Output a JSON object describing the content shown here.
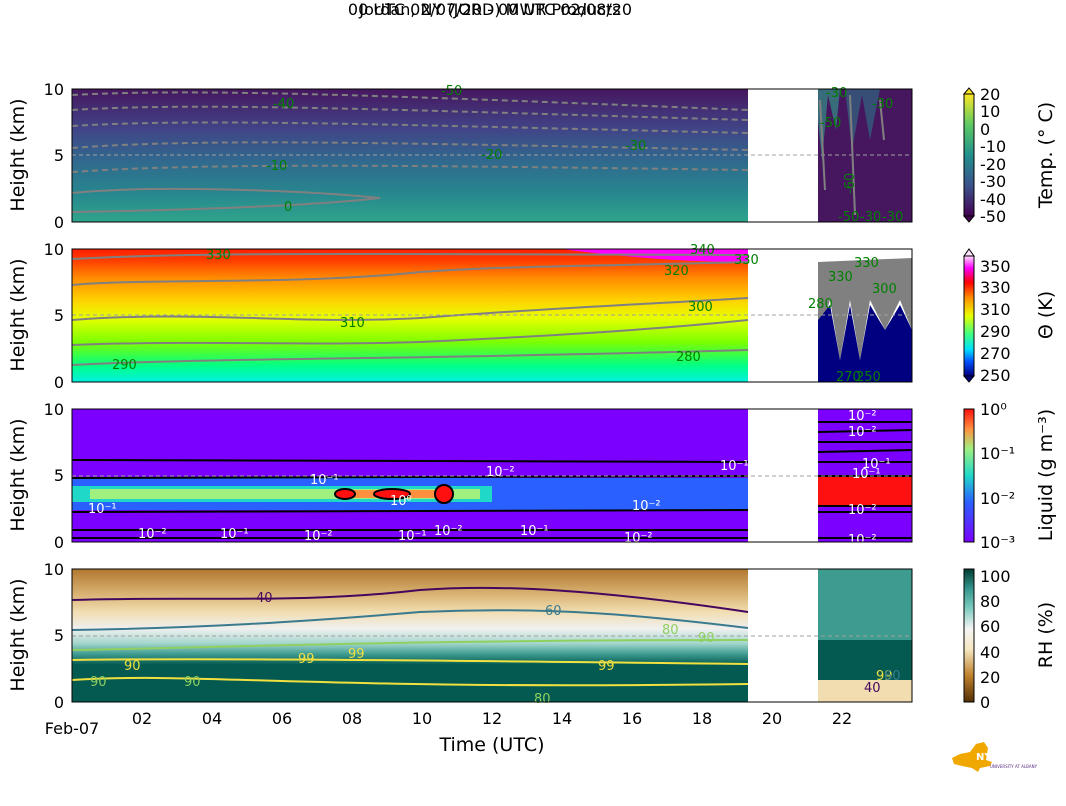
{
  "figure": {
    "title": "Jordan, NY (JORD) MWR Products",
    "subtitle": "00 UTC 02/07/20 - 00 UTC 02/08/20",
    "xlabel": "Time (UTC)",
    "x_ticks": [
      "Feb-07",
      "02",
      "04",
      "06",
      "08",
      "10",
      "12",
      "14",
      "16",
      "18",
      "20",
      "22"
    ],
    "logo": {
      "name": "NYS Mesonet",
      "sub": "UNIVERSITY AT ALBANY"
    }
  },
  "colors": {
    "purple": "#7b00ff",
    "missing": "#ffffff",
    "contour_gray": "#808080",
    "label_green": "#008000",
    "dashed_ref": "#a0a0a0"
  },
  "chart_data": [
    {
      "type": "heatmap",
      "panel": "temperature",
      "ylabel": "Height (km)",
      "y_ticks": [
        "0",
        "5",
        "10"
      ],
      "ylim": [
        0,
        10
      ],
      "x_range_hours": [
        0,
        24
      ],
      "data_gap_hours": [
        19.2,
        21.2
      ],
      "colorbar": {
        "label": "Temp. (° C)",
        "ticks": [
          "20",
          "10",
          "0",
          "-10",
          "-20",
          "-30",
          "-40",
          "-50"
        ],
        "range": [
          -50,
          20
        ]
      },
      "contour_labels": [
        "-40",
        "-50",
        "-10",
        "-20",
        "-30",
        "0",
        "-30",
        "-50",
        "-60",
        "-50",
        "-30",
        "-30",
        "-30"
      ]
    },
    {
      "type": "heatmap",
      "panel": "potential_temperature",
      "ylabel": "Height (km)",
      "y_ticks": [
        "0",
        "5",
        "10"
      ],
      "ylim": [
        0,
        10
      ],
      "colorbar": {
        "label": "Θ (K)",
        "ticks": [
          "350",
          "330",
          "310",
          "290",
          "270",
          "250"
        ],
        "range": [
          250,
          360
        ]
      },
      "contour_labels": [
        "330",
        "320",
        "330",
        "340",
        "310",
        "300",
        "290",
        "280",
        "280",
        "330",
        "330",
        "300",
        "270",
        "250"
      ]
    },
    {
      "type": "heatmap",
      "panel": "liquid",
      "ylabel": "Height (km)",
      "y_ticks": [
        "0",
        "5",
        "10"
      ],
      "ylim": [
        0,
        10
      ],
      "colorbar": {
        "label": "Liquid (g m⁻³)",
        "ticks": [
          "10⁰",
          "10⁻¹",
          "10⁻²",
          "10⁻³"
        ],
        "range": [
          0.001,
          1
        ],
        "scale": "log"
      },
      "contour_labels": [
        "10⁻¹",
        "10⁻²",
        "10⁻²",
        "10⁻¹",
        "10⁰",
        "10⁻¹",
        "10⁻¹",
        "10⁻²",
        "10⁻¹",
        "10⁻²",
        "10⁻¹",
        "10⁻²",
        "10⁻²",
        "10⁻²",
        "10⁻²",
        "10⁻¹",
        "10⁻¹",
        "10⁻²",
        "10⁻²"
      ]
    },
    {
      "type": "heatmap",
      "panel": "relative_humidity",
      "ylabel": "Height (km)",
      "y_ticks": [
        "0",
        "5",
        "10"
      ],
      "ylim": [
        0,
        10
      ],
      "colorbar": {
        "label": "RH (%)",
        "ticks": [
          "100",
          "80",
          "60",
          "40",
          "20",
          "0"
        ],
        "range": [
          0,
          105
        ]
      },
      "contour_labels": [
        "40",
        "60",
        "90",
        "99",
        "99",
        "99",
        "90",
        "90",
        "80",
        "90",
        "80",
        "99",
        "40",
        "60"
      ]
    }
  ]
}
